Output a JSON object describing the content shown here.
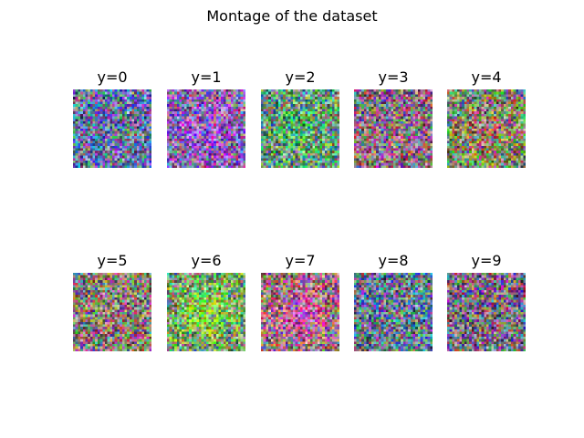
{
  "figure": {
    "title": "Montage of the dataset"
  },
  "panels": [
    {
      "label": "y=0",
      "tint": "#6a78a0",
      "blob": null
    },
    {
      "label": "y=1",
      "tint": "#8a6aa8",
      "blob": "#9a5ad8"
    },
    {
      "label": "y=2",
      "tint": "#6c9a78",
      "blob": "#5aa870"
    },
    {
      "label": "y=3",
      "tint": "#8a7080",
      "blob": null
    },
    {
      "label": "y=4",
      "tint": "#7a8a6a",
      "blob": "#a06a6a"
    },
    {
      "label": "y=5",
      "tint": "#8a7a78",
      "blob": null
    },
    {
      "label": "y=6",
      "tint": "#7a9a6a",
      "blob": "#8ad84a"
    },
    {
      "label": "y=7",
      "tint": "#9a7a7a",
      "blob": "#c858a8"
    },
    {
      "label": "y=8",
      "tint": "#6a7890",
      "blob": null
    },
    {
      "label": "y=9",
      "tint": "#7a6a80",
      "blob": null
    }
  ]
}
